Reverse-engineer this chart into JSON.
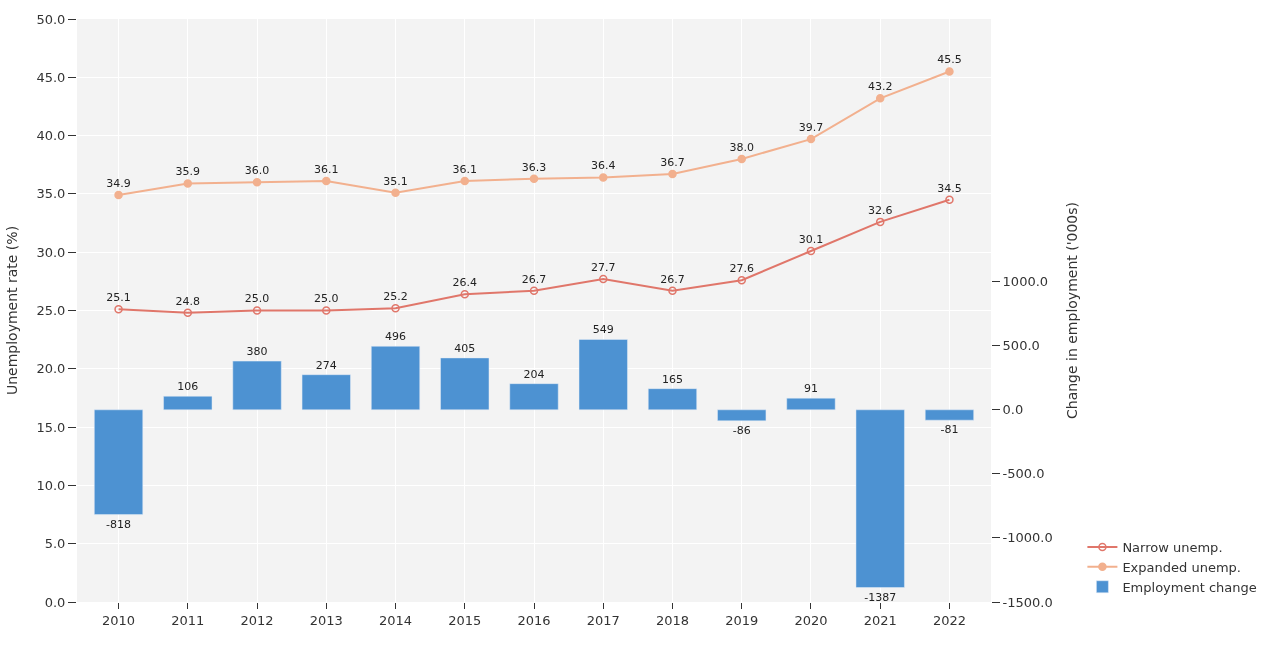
{
  "chart_data": {
    "type": "line",
    "categories": [
      "2010",
      "2011",
      "2012",
      "2013",
      "2014",
      "2015",
      "2016",
      "2017",
      "2018",
      "2019",
      "2020",
      "2021",
      "2022"
    ],
    "ylabel": "Unemployment rate (%)",
    "y2label": "Change in employment ('000s)",
    "ylim": [
      0,
      50
    ],
    "yticks": [
      {
        "value": 0,
        "label": "0.0"
      },
      {
        "value": 5,
        "label": "5.0"
      },
      {
        "value": 10,
        "label": "10.0"
      },
      {
        "value": 15,
        "label": "15.0"
      },
      {
        "value": 20,
        "label": "20.0"
      },
      {
        "value": 25,
        "label": "25.0"
      },
      {
        "value": 30,
        "label": "30.0"
      },
      {
        "value": 35,
        "label": "35.0"
      },
      {
        "value": 40,
        "label": "40.0"
      },
      {
        "value": 45,
        "label": "45.0"
      },
      {
        "value": 50,
        "label": "50.0"
      }
    ],
    "y2lim": [
      -1500,
      3050
    ],
    "y2ticks": [
      {
        "value": -1500,
        "label": "-1500.0"
      },
      {
        "value": -1000,
        "label": "-1000.0"
      },
      {
        "value": -500,
        "label": "-500.0"
      },
      {
        "value": 0,
        "label": "0.0"
      },
      {
        "value": 500,
        "label": "500.0"
      },
      {
        "value": 1000,
        "label": "1000.0"
      }
    ],
    "series": [
      {
        "name": "Narrow unemp.",
        "color": "#e0766a",
        "marker": "circle-open",
        "values": [
          25.1,
          24.8,
          25.0,
          25.0,
          25.2,
          26.4,
          26.7,
          27.7,
          26.7,
          27.6,
          30.1,
          32.6,
          34.5
        ],
        "value_labels": [
          "25.1",
          "24.8",
          "25.0",
          "25.0",
          "25.2",
          "26.4",
          "26.7",
          "27.7",
          "26.7",
          "27.6",
          "30.1",
          "32.6",
          "34.5"
        ]
      },
      {
        "name": "Expanded unemp.",
        "color": "#f2b08e",
        "marker": "circle",
        "values": [
          34.9,
          35.9,
          36.0,
          36.1,
          35.1,
          36.1,
          36.3,
          36.4,
          36.7,
          38.0,
          39.7,
          43.2,
          45.5
        ],
        "value_labels": [
          "34.9",
          "35.9",
          "36.0",
          "36.1",
          "35.1",
          "36.1",
          "36.3",
          "36.4",
          "36.7",
          "38.0",
          "39.7",
          "43.2",
          "45.5"
        ]
      },
      {
        "name": "Employment change",
        "type": "bar",
        "axis": "y2",
        "color": "#4d92d2",
        "values": [
          -818,
          106,
          380,
          274,
          496,
          405,
          204,
          549,
          165,
          -86,
          91,
          -1387,
          -81
        ],
        "value_labels": [
          "-818",
          "106",
          "380",
          "274",
          "496",
          "405",
          "204",
          "549",
          "165",
          "-86",
          "91",
          "-1387",
          "-81"
        ]
      }
    ],
    "grid": true,
    "legend": "bottom right",
    "line_style": "solid"
  }
}
